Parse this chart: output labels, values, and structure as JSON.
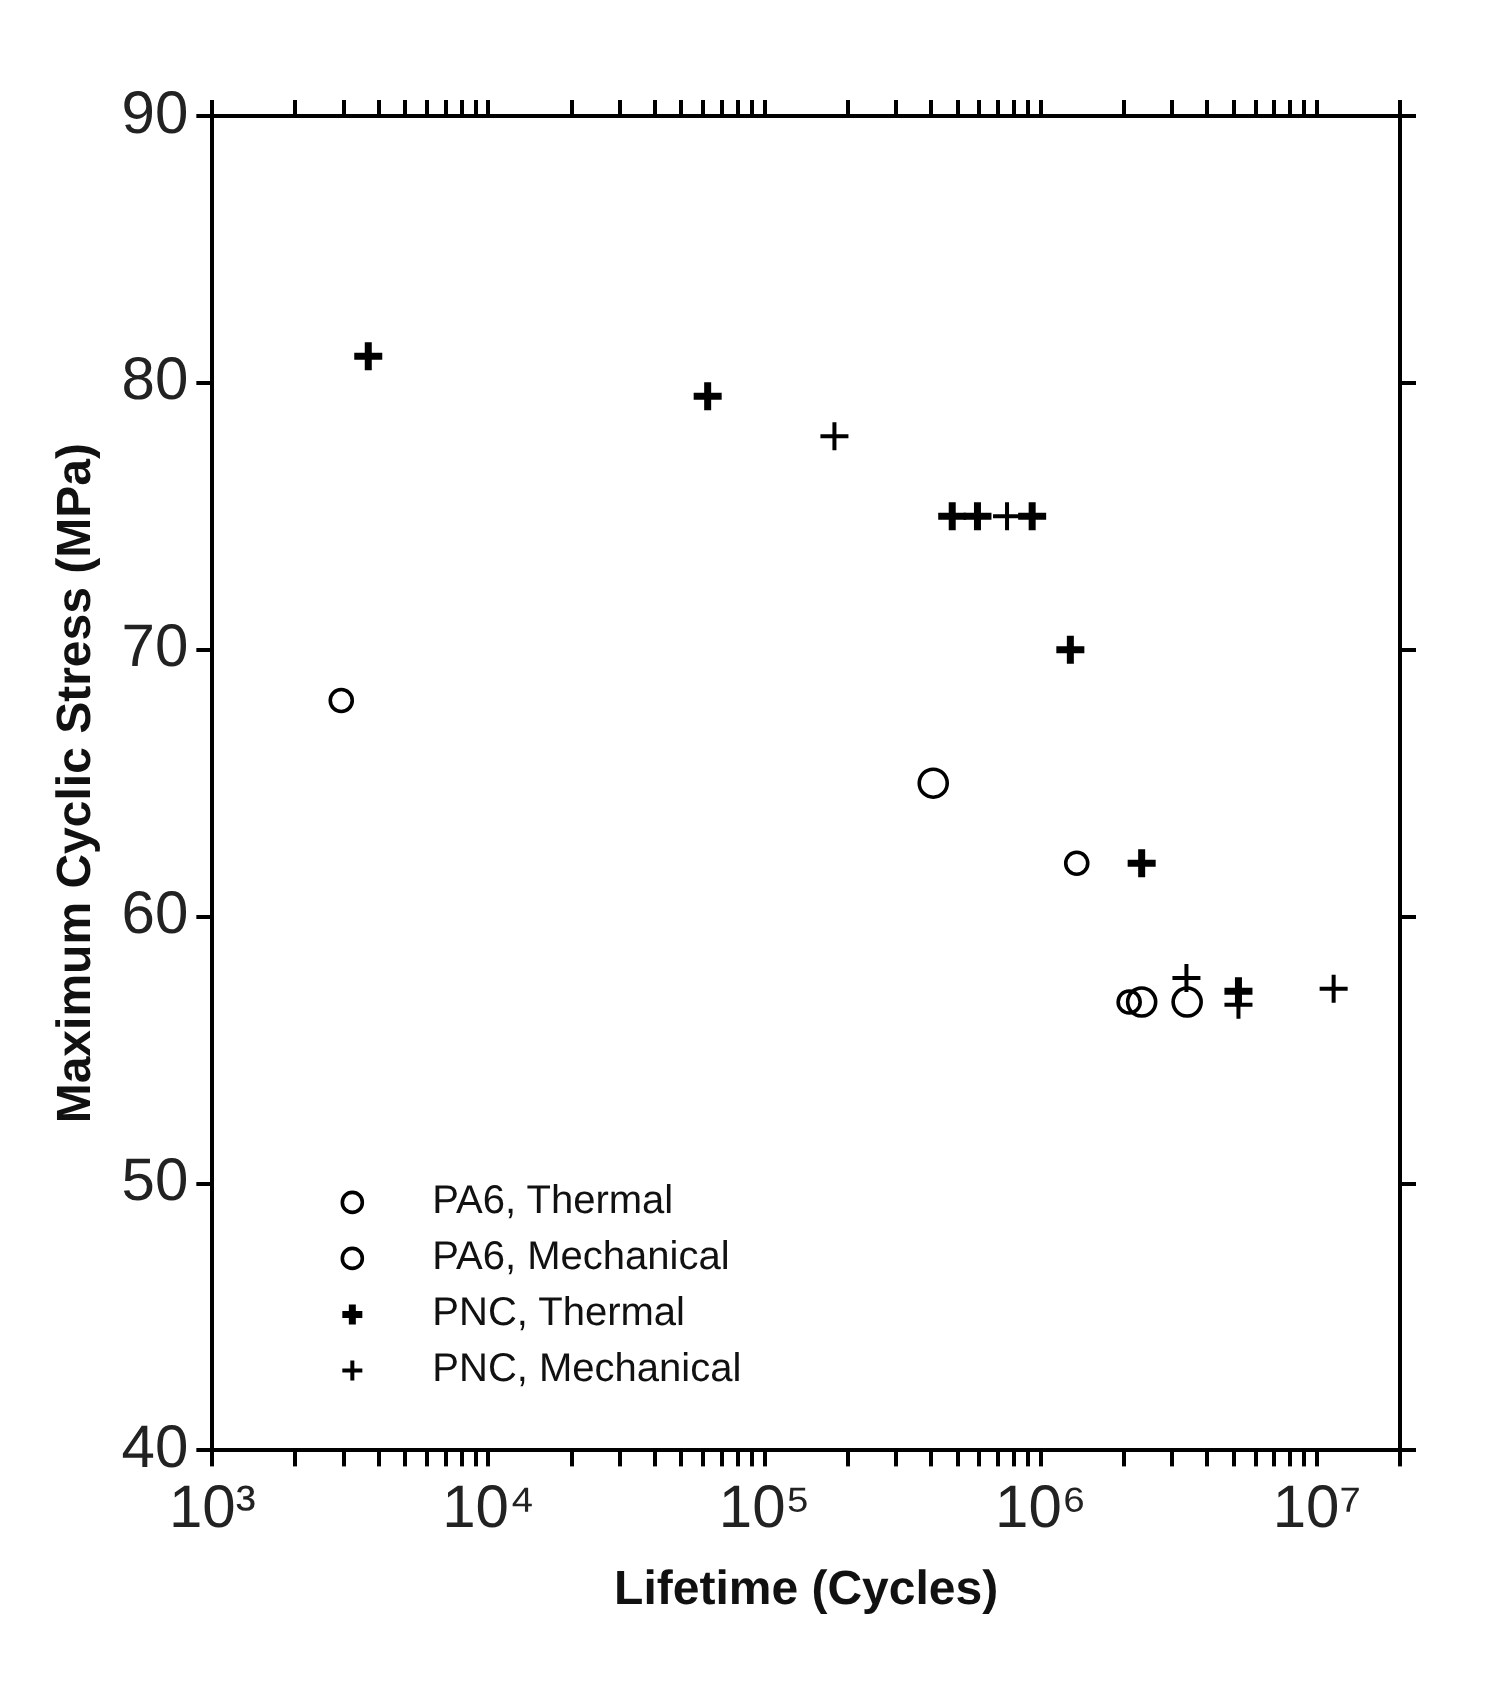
{
  "chart_data": {
    "type": "scatter",
    "xlabel": "Lifetime (Cycles)",
    "ylabel": "Maximum Cyclic Stress (MPa)",
    "log": "x",
    "xlim": [
      1000,
      20000000
    ],
    "ylim": [
      40,
      90
    ],
    "xticks": [
      {
        "value": 1000,
        "label": "10³"
      },
      {
        "value": 2000,
        "label": null
      },
      {
        "value": 3000,
        "label": null
      },
      {
        "value": 4000,
        "label": null
      },
      {
        "value": 5000,
        "label": null
      },
      {
        "value": 6000,
        "label": null
      },
      {
        "value": 7000,
        "label": null
      },
      {
        "value": 8000,
        "label": null
      },
      {
        "value": 9000,
        "label": null
      },
      {
        "value": 10000,
        "label": "10⁴"
      },
      {
        "value": 20000,
        "label": null
      },
      {
        "value": 30000,
        "label": null
      },
      {
        "value": 40000,
        "label": null
      },
      {
        "value": 50000,
        "label": null
      },
      {
        "value": 60000,
        "label": null
      },
      {
        "value": 70000,
        "label": null
      },
      {
        "value": 80000,
        "label": null
      },
      {
        "value": 90000,
        "label": null
      },
      {
        "value": 100000,
        "label": "10⁵"
      },
      {
        "value": 200000,
        "label": null
      },
      {
        "value": 300000,
        "label": null
      },
      {
        "value": 400000,
        "label": null
      },
      {
        "value": 500000,
        "label": null
      },
      {
        "value": 600000,
        "label": null
      },
      {
        "value": 700000,
        "label": null
      },
      {
        "value": 800000,
        "label": null
      },
      {
        "value": 900000,
        "label": null
      },
      {
        "value": 1000000,
        "label": "10⁶"
      },
      {
        "value": 2000000,
        "label": null
      },
      {
        "value": 3000000,
        "label": null
      },
      {
        "value": 4000000,
        "label": null
      },
      {
        "value": 5000000,
        "label": null
      },
      {
        "value": 6000000,
        "label": null
      },
      {
        "value": 7000000,
        "label": null
      },
      {
        "value": 8000000,
        "label": null
      },
      {
        "value": 9000000,
        "label": null
      },
      {
        "value": 10000000,
        "label": "10⁷"
      },
      {
        "value": 20000000,
        "label": null
      }
    ],
    "yticks": [
      40,
      50,
      60,
      70,
      80,
      90
    ],
    "grid": false,
    "legend": "bottom left",
    "series": [
      {
        "name": "PA6, Thermal",
        "color": "#000000",
        "marker": "circle",
        "x": [
          2930,
          1350000,
          2090000
        ],
        "values": [
          68.1,
          62,
          56.8
        ]
      },
      {
        "name": "PA6, Mechanical",
        "color": "#000000",
        "marker": "circle",
        "x": [
          408000,
          2320000,
          3390000
        ],
        "values": [
          65,
          56.8,
          56.8
        ]
      },
      {
        "name": "PNC, Thermal",
        "color": "#000000",
        "marker": "cross",
        "x": [
          3670,
          62200,
          478000,
          590000,
          931000,
          1280000,
          2320000,
          5200000
        ],
        "values": [
          81,
          79.5,
          75,
          75,
          75,
          70,
          62,
          57.2
        ]
      },
      {
        "name": "PNC, Mechanical",
        "color": "#000000",
        "marker": "cross",
        "x": [
          179000,
          755000,
          3370000,
          5200000,
          11500000
        ],
        "values": [
          78,
          75,
          57.7,
          56.7,
          57.3
        ]
      }
    ]
  }
}
